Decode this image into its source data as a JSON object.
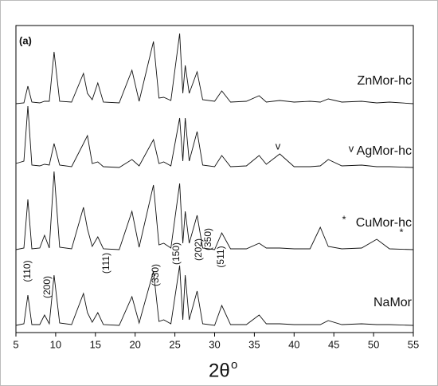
{
  "chart_data": {
    "type": "line",
    "panel_label": "(a)",
    "xlabel": "2θ",
    "xlabel_sup": "o",
    "xlim": [
      5,
      55
    ],
    "xticks": [
      5,
      10,
      15,
      20,
      25,
      30,
      35,
      40,
      45,
      50,
      55
    ],
    "ylim": [
      0,
      385
    ],
    "x": [
      5,
      6,
      6.5,
      7,
      8,
      8.6,
      9.2,
      9.8,
      10.5,
      12,
      13.5,
      14,
      14.6,
      15.3,
      16,
      18,
      19.6,
      20.5,
      22.3,
      23,
      23.6,
      24.5,
      25.6,
      26,
      26.3,
      26.8,
      27.8,
      28.5,
      30,
      30.9,
      32,
      34,
      35.6,
      36.5,
      38.2,
      40,
      42,
      43.3,
      44.3,
      46,
      48.5,
      50.4,
      52,
      55
    ],
    "series": [
      {
        "name": "ZnMor-hc",
        "color": "#111111",
        "values": [
          287,
          288,
          309,
          289,
          288,
          290,
          290,
          352,
          290,
          289,
          325,
          300,
          292,
          313,
          289,
          288,
          329,
          290,
          365,
          294,
          295,
          291,
          375,
          300,
          335,
          300,
          327,
          292,
          290,
          303,
          289,
          290,
          297,
          289,
          291,
          289,
          290,
          289,
          293,
          289,
          290,
          288,
          289,
          287
        ]
      },
      {
        "name": "AgMor-hc",
        "color": "#111111",
        "values": [
          212,
          215,
          284,
          210,
          209,
          211,
          210,
          237,
          210,
          208,
          237,
          247,
          212,
          214,
          208,
          207,
          217,
          209,
          242,
          212,
          214,
          209,
          269,
          215,
          269,
          215,
          252,
          210,
          208,
          222,
          208,
          209,
          222,
          211,
          224,
          208,
          208,
          209,
          217,
          209,
          210,
          208,
          208,
          207
        ]
      },
      {
        "name": "CuMor-hc",
        "color": "#111111",
        "values": [
          104,
          106,
          167,
          105,
          106,
          122,
          106,
          202,
          107,
          105,
          157,
          130,
          108,
          120,
          105,
          104,
          152,
          107,
          185,
          110,
          112,
          106,
          187,
          112,
          152,
          112,
          147,
          106,
          104,
          125,
          105,
          105,
          112,
          106,
          106,
          105,
          105,
          132,
          108,
          105,
          106,
          117,
          105,
          104
        ]
      },
      {
        "name": "NaMor",
        "color": "#111111",
        "values": [
          9,
          11,
          47,
          10,
          10,
          22,
          11,
          72,
          12,
          10,
          49,
          25,
          13,
          25,
          10,
          9,
          45,
          12,
          77,
          14,
          16,
          11,
          84,
          16,
          72,
          16,
          52,
          11,
          9,
          34,
          10,
          10,
          22,
          11,
          11,
          10,
          10,
          10,
          15,
          10,
          11,
          10,
          10,
          9
        ]
      }
    ],
    "peak_labels": [
      "(110)",
      "(200)",
      "(111)",
      "(330)",
      "(150)",
      "(202)",
      "(350)",
      "(511)"
    ],
    "markers": [
      "v",
      "v",
      "*",
      "*"
    ]
  }
}
